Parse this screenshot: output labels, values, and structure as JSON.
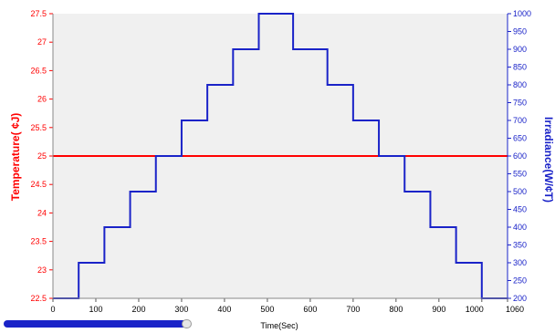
{
  "chart_data": {
    "type": "line",
    "xlabel": "Time(Sec)",
    "ylabel_left": "Temperature( ¢J)",
    "ylabel_right": "Irradiance(W/¢T)",
    "xlim": [
      0,
      1060
    ],
    "ylim_left": [
      22.5,
      27.5
    ],
    "ylim_right": [
      200,
      1000
    ],
    "x_ticks": [
      0,
      100,
      200,
      300,
      400,
      500,
      600,
      700,
      800,
      900,
      1000,
      1060
    ],
    "left_ticks": [
      22.5,
      23,
      23.5,
      24,
      24.5,
      25,
      25.5,
      26,
      26.5,
      27,
      27.5
    ],
    "right_ticks": [
      200,
      250,
      300,
      350,
      400,
      450,
      500,
      550,
      600,
      650,
      700,
      750,
      800,
      850,
      900,
      950,
      1000
    ],
    "grid": false,
    "series": [
      {
        "axis": "left",
        "color": "#ff0000",
        "step": false,
        "x": [
          0,
          1060
        ],
        "y": [
          25,
          25
        ]
      },
      {
        "axis": "right",
        "color": "#1a23c8",
        "step": true,
        "x": [
          0,
          60,
          120,
          180,
          240,
          300,
          360,
          420,
          480,
          560,
          640,
          700,
          760,
          820,
          880,
          940,
          1000,
          1060
        ],
        "y": [
          200,
          300,
          400,
          500,
          600,
          700,
          800,
          900,
          1000,
          900,
          800,
          700,
          600,
          500,
          400,
          300,
          200,
          200
        ]
      }
    ],
    "colors": {
      "left_axis": "#ff0000",
      "right_axis": "#1a23c8",
      "plot_background": "#f0f0f0"
    }
  },
  "scrollbar": {
    "value": 0.33
  }
}
